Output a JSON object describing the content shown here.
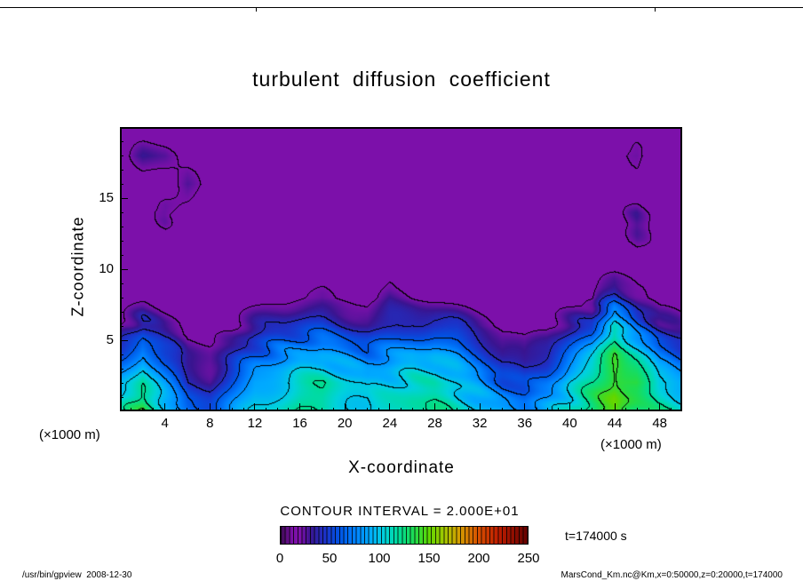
{
  "header": {
    "title": "turbulent diffusion coefficient"
  },
  "axes": {
    "x_label": "X-coordinate",
    "y_label": "Z-coordinate",
    "x_unit": "(×1000 m)",
    "y_unit": "(×1000 m)",
    "x_ticks": [
      4,
      8,
      12,
      16,
      20,
      24,
      28,
      32,
      36,
      40,
      44,
      48
    ],
    "y_ticks": [
      5,
      10,
      15
    ]
  },
  "colorbar": {
    "caption": "CONTOUR INTERVAL = 2.000E+01",
    "ticks": [
      0,
      50,
      100,
      150,
      200,
      250
    ]
  },
  "annotation": {
    "time": "t=174000 s"
  },
  "footer": {
    "left": "/usr/bin/gpview  2008-12-30",
    "right": "MarsCond_Km.nc@Km,x=0:50000,z=0:20000,t=174000"
  },
  "chart_data": {
    "type": "heatmap",
    "subtype": "filled_contour",
    "title": "turbulent diffusion coefficient",
    "xlabel": "X-coordinate",
    "ylabel": "Z-coordinate",
    "x_range": [
      0,
      50
    ],
    "z_range": [
      0,
      20
    ],
    "axis_unit": "×1000 m",
    "contour_interval": 20,
    "value_range": [
      0,
      250
    ],
    "colorbar_ticks": [
      0,
      50,
      100,
      150,
      200,
      250
    ],
    "time_s": 174000,
    "colormap": [
      [
        0,
        "#3c0a52"
      ],
      [
        12,
        "#7c10aa"
      ],
      [
        20,
        "#7c10aa"
      ],
      [
        30,
        "#3a1490"
      ],
      [
        45,
        "#1c32c8"
      ],
      [
        60,
        "#0055e6"
      ],
      [
        75,
        "#0080ff"
      ],
      [
        90,
        "#00aaff"
      ],
      [
        105,
        "#00d2dc"
      ],
      [
        120,
        "#00dc96"
      ],
      [
        135,
        "#1edc50"
      ],
      [
        150,
        "#5fd700"
      ],
      [
        165,
        "#a0c800"
      ],
      [
        180,
        "#d2a000"
      ],
      [
        200,
        "#d75000"
      ],
      [
        220,
        "#bf1e00"
      ],
      [
        250,
        "#640000"
      ]
    ],
    "grid": {
      "x_start": 0,
      "x_step": 2,
      "z_start": 0,
      "z_step": 2,
      "note": "approximate Km values read from plot; purple background band ~<20",
      "values_rows_bottom_to_top": [
        [
          110,
          140,
          100,
          70,
          60,
          80,
          100,
          110,
          120,
          120,
          110,
          100,
          110,
          120,
          120,
          110,
          100,
          90,
          80,
          90,
          110,
          130,
          150,
          130,
          120,
          110
        ],
        [
          90,
          120,
          80,
          40,
          34,
          60,
          90,
          100,
          110,
          115,
          105,
          95,
          100,
          110,
          110,
          100,
          85,
          60,
          50,
          70,
          100,
          120,
          150,
          140,
          100,
          92
        ],
        [
          50,
          85,
          52,
          28,
          24,
          38,
          60,
          75,
          85,
          90,
          80,
          70,
          80,
          90,
          90,
          80,
          60,
          36,
          30,
          42,
          70,
          92,
          140,
          112,
          72,
          56
        ],
        [
          22,
          42,
          28,
          16,
          14,
          18,
          32,
          42,
          46,
          50,
          42,
          34,
          40,
          46,
          46,
          40,
          27,
          16,
          14,
          18,
          32,
          46,
          112,
          62,
          36,
          26
        ],
        [
          14,
          18,
          15,
          14,
          14,
          14,
          15,
          18,
          20,
          22,
          17,
          14,
          26,
          20,
          16,
          14,
          14,
          14,
          14,
          14,
          15,
          18,
          48,
          27,
          15,
          14
        ],
        [
          14,
          14,
          14,
          14,
          14,
          14,
          14,
          14,
          14,
          14,
          14,
          14,
          15,
          14,
          14,
          14,
          14,
          14,
          14,
          14,
          14,
          14,
          17,
          14,
          14,
          14
        ],
        [
          14,
          14,
          14,
          14,
          14,
          14,
          14,
          14,
          14,
          14,
          14,
          14,
          14,
          14,
          14,
          14,
          14,
          14,
          14,
          14,
          14,
          14,
          14,
          26,
          14,
          14
        ],
        [
          14,
          14,
          26,
          14,
          14,
          14,
          14,
          14,
          14,
          14,
          14,
          14,
          14,
          14,
          14,
          14,
          14,
          14,
          14,
          14,
          14,
          14,
          14,
          27,
          14,
          14
        ],
        [
          14,
          14,
          14,
          27,
          14,
          14,
          14,
          14,
          14,
          14,
          14,
          14,
          14,
          14,
          14,
          14,
          14,
          14,
          14,
          14,
          14,
          14,
          14,
          14,
          14,
          14
        ],
        [
          14,
          27,
          26,
          14,
          14,
          14,
          14,
          14,
          14,
          14,
          14,
          14,
          14,
          14,
          14,
          14,
          14,
          14,
          14,
          14,
          14,
          14,
          14,
          26,
          14,
          14
        ],
        [
          14,
          14,
          14,
          14,
          14,
          14,
          14,
          14,
          14,
          14,
          14,
          14,
          14,
          14,
          14,
          14,
          14,
          14,
          14,
          14,
          14,
          14,
          14,
          14,
          14,
          14
        ]
      ]
    }
  }
}
